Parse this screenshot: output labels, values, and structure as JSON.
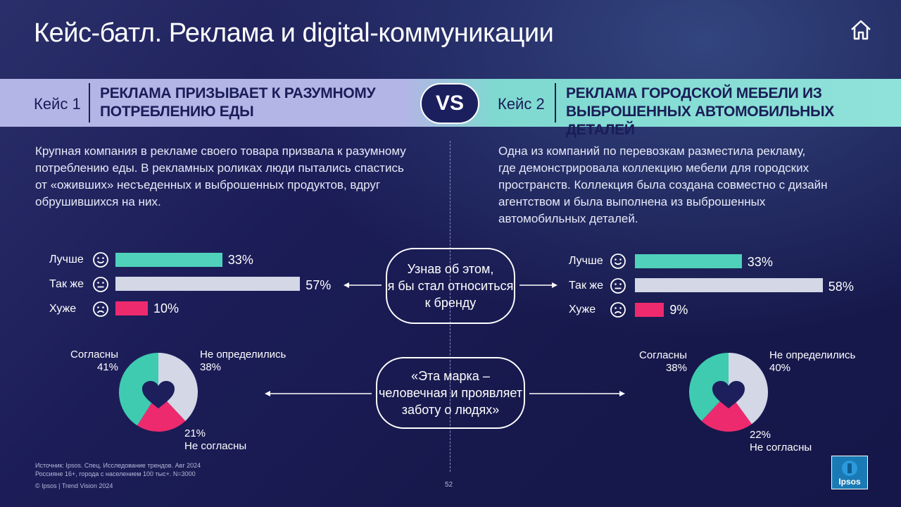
{
  "title": "Кейс-батл. Реклама и digital-коммуникации",
  "vs": "VS",
  "case1": {
    "label": "Кейс 1",
    "title_line1": "РЕКЛАМА ПРИЗЫВАЕТ К РАЗУМНОМУ",
    "title_line2": "ПОТРЕБЛЕНИЮ ЕДЫ",
    "desc_lines": [
      "Крупная компания в рекламе своего товара призвала к разумному",
      "потреблению еды. В рекламных роликах люди пытались спастись",
      "от «оживших» несъеденных и выброшенных продуктов, вдруг",
      "обрушившихся на них."
    ]
  },
  "case2": {
    "label": "Кейс 2",
    "title_line1": "РЕКЛАМА ГОРОДСКОЙ МЕБЕЛИ ИЗ",
    "title_line2": "ВЫБРОШЕННЫХ АВТОМОБИЛЬНЫХ ДЕТАЛЕЙ",
    "desc_lines": [
      "Одна из компаний по перевозкам разместила рекламу,",
      "где демонстрировала коллекцию мебели для городских",
      "пространств. Коллекция была создана совместно с дизайн",
      "агентством и была выполнена из выброшенных",
      "автомобильных деталей."
    ]
  },
  "bubble_attitude": [
    "Узнав об этом,",
    "я бы стал относиться",
    "к бренду"
  ],
  "bubble_human": [
    "«Эта марка –",
    "человечная и проявляет",
    "заботу о людях»"
  ],
  "colors": {
    "better": "#4fd1bb",
    "same": "#d3d7e6",
    "worse": "#ee2a6e",
    "pie_agree": "#3ecbb0",
    "pie_undecided": "#d3d7e6",
    "pie_disagree": "#ee2a6e"
  },
  "chart_data": [
    {
      "type": "bar",
      "orientation": "horizontal",
      "categories": [
        "Лучше",
        "Так же",
        "Хуже"
      ],
      "values": [
        33,
        57,
        10
      ],
      "value_labels": [
        "33%",
        "57%",
        "10%"
      ],
      "xlim": [
        0,
        100
      ]
    },
    {
      "type": "bar",
      "orientation": "horizontal",
      "categories": [
        "Лучше",
        "Так же",
        "Хуже"
      ],
      "values": [
        33,
        58,
        9
      ],
      "value_labels": [
        "33%",
        "58%",
        "9%"
      ],
      "xlim": [
        0,
        100
      ]
    },
    {
      "type": "pie",
      "labels": [
        "Согласны",
        "Не определились",
        "Не согласны"
      ],
      "values": [
        41,
        38,
        21
      ],
      "value_labels": [
        "41%",
        "38%",
        "21%"
      ]
    },
    {
      "type": "pie",
      "labels": [
        "Согласны",
        "Не определились",
        "Не согласны"
      ],
      "values": [
        38,
        40,
        22
      ],
      "value_labels": [
        "38%",
        "40%",
        "22%"
      ]
    }
  ],
  "source_lines": [
    "Источник: Ipsos. Спец. Исследование трендов. Авг 2024",
    "Россияне 16+, города с населением 100 тыс+. N=3000",
    "© Ipsos | Trend Vision 2024"
  ],
  "page_number": "52",
  "logo_text": "Ipsos"
}
